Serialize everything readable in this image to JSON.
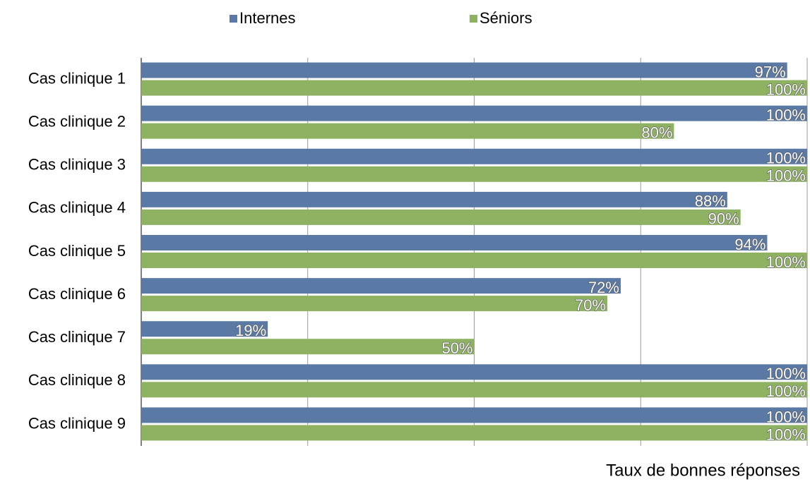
{
  "chart_data": {
    "type": "bar",
    "orientation": "horizontal",
    "categories": [
      "Cas clinique 1",
      "Cas clinique 2",
      "Cas clinique 3",
      "Cas clinique 4",
      "Cas clinique 5",
      "Cas clinique 6",
      "Cas clinique 7",
      "Cas clinique 8",
      "Cas clinique 9"
    ],
    "series": [
      {
        "name": "Internes",
        "color": "#5a7aa5",
        "values": [
          97,
          100,
          100,
          88,
          94,
          72,
          19,
          100,
          100
        ],
        "value_labels": [
          "97%",
          "100%",
          "100%",
          "88%",
          "94%",
          "72%",
          "19%",
          "100%",
          "100%"
        ]
      },
      {
        "name": "Séniors",
        "color": "#8eb262",
        "values": [
          100,
          80,
          100,
          90,
          100,
          70,
          50,
          100,
          100
        ],
        "value_labels": [
          "100%",
          "80%",
          "100%",
          "90%",
          "100%",
          "70%",
          "50%",
          "100%",
          "100%"
        ]
      }
    ],
    "x_label": "Taux de bonnes réponses",
    "xlim": [
      0,
      100
    ],
    "xticks": [
      0,
      25,
      50,
      75,
      100
    ],
    "grid": true,
    "legend": "top"
  }
}
